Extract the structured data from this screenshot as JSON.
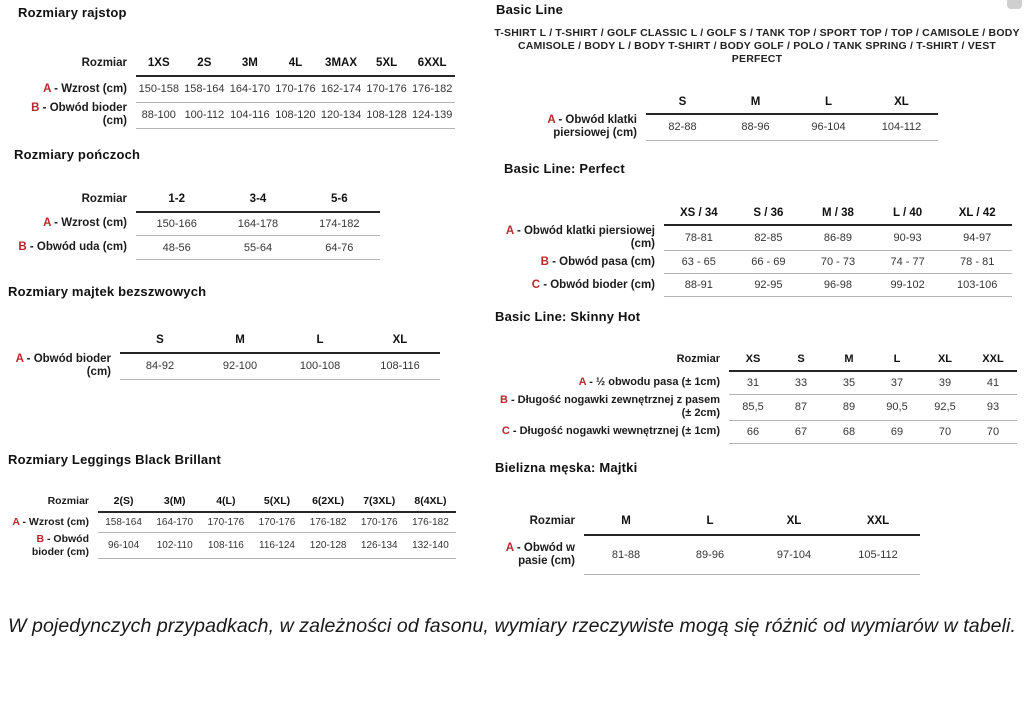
{
  "accent_color": "#b8282c",
  "sections": {
    "rajstop": {
      "title": "Rozmiary rajstop",
      "header_label": "Rozmiar",
      "columns": [
        "1XS",
        "2S",
        "3M",
        "4L",
        "3MAX",
        "5XL",
        "6XXL"
      ],
      "rows": [
        {
          "letter": "A",
          "label": "- Wzrost (cm)",
          "values": [
            "150-158",
            "158-164",
            "164-170",
            "170-176",
            "162-174",
            "170-176",
            "176-182"
          ]
        },
        {
          "letter": "B",
          "label": "- Obwód bioder (cm)",
          "values": [
            "88-100",
            "100-112",
            "104-116",
            "108-120",
            "120-134",
            "108-128",
            "124-139"
          ]
        }
      ]
    },
    "ponczoch": {
      "title": "Rozmiary pończoch",
      "header_label": "Rozmiar",
      "columns": [
        "1-2",
        "3-4",
        "5-6"
      ],
      "rows": [
        {
          "letter": "A",
          "label": "- Wzrost (cm)",
          "values": [
            "150-166",
            "164-178",
            "174-182"
          ]
        },
        {
          "letter": "B",
          "label": "- Obwód uda (cm)",
          "values": [
            "48-56",
            "55-64",
            "64-76"
          ]
        }
      ]
    },
    "majtek": {
      "title": "Rozmiary majtek bezszwowych",
      "header_label": "",
      "columns": [
        "S",
        "M",
        "L",
        "XL"
      ],
      "rows": [
        {
          "letter": "A",
          "label": "- Obwód bioder (cm)",
          "values": [
            "84-92",
            "92-100",
            "100-108",
            "108-116"
          ]
        }
      ]
    },
    "leggings": {
      "title": "Rozmiary Leggings Black Brillant",
      "header_label": "Rozmiar",
      "columns": [
        "2(S)",
        "3(M)",
        "4(L)",
        "5(XL)",
        "6(2XL)",
        "7(3XL)",
        "8(4XL)"
      ],
      "rows": [
        {
          "letter": "A",
          "label": "- Wzrost (cm)",
          "values": [
            "158-164",
            "164-170",
            "170-176",
            "170-176",
            "176-182",
            "170-176",
            "176-182"
          ]
        },
        {
          "letter": "B",
          "label": "- Obwód bioder (cm)",
          "values": [
            "96-104",
            "102-110",
            "108-116",
            "116-124",
            "120-128",
            "126-134",
            "132-140"
          ]
        }
      ]
    },
    "basic_line": {
      "title": "Basic Line",
      "products": "T-SHIRT L / T-SHIRT / GOLF CLASSIC L / GOLF S / TANK TOP / SPORT TOP / TOP / CAMISOLE / BODY CAMISOLE / BODY L / BODY T-SHIRT / BODY GOLF / POLO / TANK SPRING / T-SHIRT / VEST PERFECT",
      "header_label": "",
      "columns": [
        "S",
        "M",
        "L",
        "XL"
      ],
      "rows": [
        {
          "letter": "A",
          "label": "- Obwód klatki piersiowej (cm)",
          "values": [
            "82-88",
            "88-96",
            "96-104",
            "104-112"
          ]
        }
      ]
    },
    "perfect": {
      "title": "Basic Line: Perfect",
      "header_label": "",
      "columns": [
        "XS / 34",
        "S / 36",
        "M / 38",
        "L / 40",
        "XL / 42"
      ],
      "rows": [
        {
          "letter": "A",
          "label": "- Obwód klatki piersiowej (cm)",
          "values": [
            "78-81",
            "82-85",
            "86-89",
            "90-93",
            "94-97"
          ]
        },
        {
          "letter": "B",
          "label": "- Obwód pasa (cm)",
          "values": [
            "63 - 65",
            "66 - 69",
            "70 - 73",
            "74 - 77",
            "78 - 81"
          ]
        },
        {
          "letter": "C",
          "label": "- Obwód bioder (cm)",
          "values": [
            "88-91",
            "92-95",
            "96-98",
            "99-102",
            "103-106"
          ]
        }
      ]
    },
    "skinny": {
      "title": "Basic Line: Skinny Hot",
      "header_label": "Rozmiar",
      "columns": [
        "XS",
        "S",
        "M",
        "L",
        "XL",
        "XXL"
      ],
      "rows": [
        {
          "letter": "A",
          "label": "- ½ obwodu pasa (± 1cm)",
          "values": [
            "31",
            "33",
            "35",
            "37",
            "39",
            "41"
          ]
        },
        {
          "letter": "B",
          "label": "- Długość nogawki zewnętrznej z pasem (± 2cm)",
          "values": [
            "85,5",
            "87",
            "89",
            "90,5",
            "92,5",
            "93"
          ]
        },
        {
          "letter": "C",
          "label": "- Długość nogawki wewnętrznej (± 1cm)",
          "values": [
            "66",
            "67",
            "68",
            "69",
            "70",
            "70"
          ]
        }
      ]
    },
    "bielizna": {
      "title": "Bielizna męska: Majtki",
      "header_label": "Rozmiar",
      "columns": [
        "M",
        "L",
        "XL",
        "XXL"
      ],
      "rows": [
        {
          "letter": "A",
          "label": "- Obwód w pasie (cm)",
          "values": [
            "81-88",
            "89-96",
            "97-104",
            "105-112"
          ]
        }
      ]
    }
  },
  "footer_note": "W pojedynczych przypadkach, w zależności od fasonu, wymiary rzeczywiste mogą się różnić od wymiarów w tabeli."
}
